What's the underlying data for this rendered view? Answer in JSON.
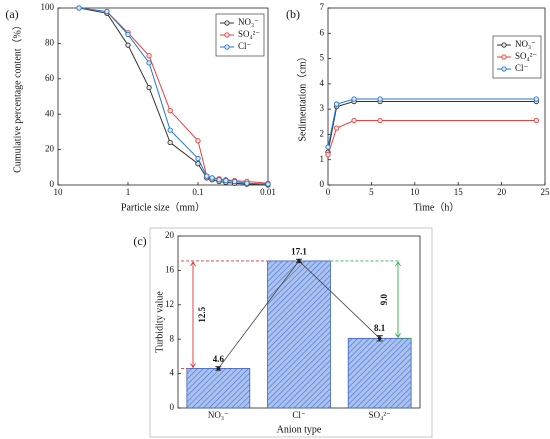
{
  "chart_data": [
    {
      "type": "line",
      "panel": "(a)",
      "xlabel": "Particle size（mm）",
      "ylabel": "Cumulative percentage content（%）",
      "log_x": true,
      "xlim": [
        10,
        0.01
      ],
      "xticks": [
        10,
        1,
        0.1,
        0.01
      ],
      "ylim": [
        0,
        100
      ],
      "yticks": [
        0,
        20,
        40,
        60,
        80,
        100
      ],
      "legend": "upper right",
      "x": [
        5,
        2,
        1,
        0.5,
        0.25,
        0.1,
        0.075,
        0.063,
        0.05,
        0.04,
        0.03,
        0.02,
        0.01
      ],
      "series": [
        {
          "name": "NO₃⁻",
          "color": "#333333",
          "values": [
            100,
            97,
            79,
            55,
            24,
            12,
            4,
            3,
            2,
            1.5,
            1,
            0.5,
            0
          ]
        },
        {
          "name": "SO₄²⁻",
          "color": "#e8413c",
          "values": [
            100,
            98,
            86,
            73,
            42,
            25,
            5,
            4,
            3.5,
            3,
            2.5,
            2,
            1
          ]
        },
        {
          "name": "Cl⁻",
          "color": "#1f77d4",
          "values": [
            100,
            98,
            85,
            69,
            31,
            15,
            5,
            4,
            3,
            2.5,
            2,
            1,
            0.5
          ]
        }
      ]
    },
    {
      "type": "line",
      "panel": "(b)",
      "xlabel": "Time（h）",
      "ylabel": "Sedimentation（cm）",
      "xlim": [
        0,
        25
      ],
      "xticks": [
        0,
        5,
        10,
        15,
        20,
        25
      ],
      "ylim": [
        0,
        7
      ],
      "yticks": [
        0,
        1,
        2,
        3,
        4,
        5,
        6,
        7
      ],
      "legend": "upper right",
      "x": [
        0,
        1,
        3,
        6,
        24
      ],
      "series": [
        {
          "name": "NO₃⁻",
          "color": "#333333",
          "values": [
            1.3,
            3.1,
            3.3,
            3.3,
            3.3
          ]
        },
        {
          "name": "SO₄²⁻",
          "color": "#e8413c",
          "values": [
            1.2,
            2.25,
            2.55,
            2.55,
            2.55
          ]
        },
        {
          "name": "Cl⁻",
          "color": "#1f77d4",
          "values": [
            1.5,
            3.2,
            3.4,
            3.4,
            3.4
          ]
        }
      ]
    },
    {
      "type": "bar",
      "panel": "(c)",
      "xlabel": "Anion type",
      "ylabel": "Turbidity value",
      "ylim": [
        0,
        20
      ],
      "yticks": [
        0,
        4,
        8,
        12,
        16,
        20
      ],
      "color": "#8fb0e8",
      "categories": [
        "NO₃⁻",
        "Cl⁻",
        "SO₄²⁻"
      ],
      "values": [
        4.6,
        17.1,
        8.1
      ],
      "errors": [
        0.2,
        0.2,
        0.3
      ],
      "annotations": [
        {
          "text": "12.5",
          "color": "#e03030"
        },
        {
          "text": "9.0",
          "color": "#2db34a"
        }
      ]
    }
  ]
}
